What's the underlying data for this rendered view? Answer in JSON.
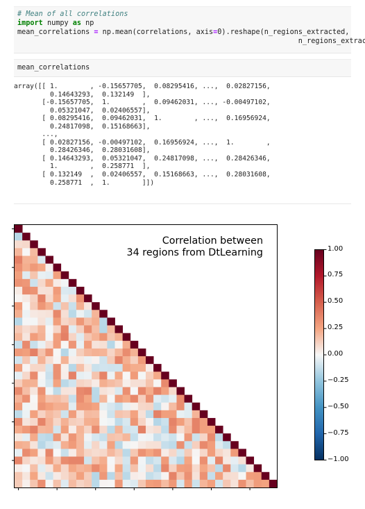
{
  "cell1": {
    "comment": "# Mean of all correlations",
    "import_kw": "import",
    "import_mod": " numpy ",
    "as_kw": "as",
    "import_alias": " np",
    "line3a": "mean_correlations ",
    "eq": "=",
    "line3b": " np.mean(correlations, axis",
    "eq2": "=",
    "line3c": "0).reshape(n_regions_extracted,",
    "line4": "                                                                  n_regions_extracted)"
  },
  "cell2": {
    "code": "mean_correlations"
  },
  "output": {
    "lines": [
      "array([[ 1.        , -0.15657705,  0.08295416, ...,  0.02827156,",
      "         0.14643293,  0.132149  ],",
      "       [-0.15657705,  1.        ,  0.09462031, ..., -0.00497102,",
      "         0.05321047,  0.02406557],",
      "       [ 0.08295416,  0.09462031,  1.        , ...,  0.16956924,",
      "         0.24817098,  0.15168663],",
      "       ...,",
      "       [ 0.02827156, -0.00497102,  0.16956924, ...,  1.        ,",
      "         0.28426346,  0.28031608],",
      "       [ 0.14643293,  0.05321047,  0.24817098, ...,  0.28426346,",
      "         1.        ,  0.258771  ],",
      "       [ 0.132149  ,  0.02406557,  0.15168663, ...,  0.28031608,",
      "         0.258771  ,  1.        ]])"
    ]
  },
  "plot": {
    "title_line1": "Correlation between",
    "title_line2": "34 regions from DtLearning",
    "colorbar_ticks": [
      "1.00",
      "0.75",
      "0.50",
      "0.25",
      "0.00",
      "−0.25",
      "−0.50",
      "−0.75",
      "−1.00"
    ],
    "colormap": "RdBu_r",
    "colors": {
      "pos_max": "#67001f",
      "neg_max": "#053061",
      "mid": "#f7f7f7"
    }
  },
  "chart_data": {
    "type": "heatmap",
    "n_regions": 34,
    "triangle": "lower",
    "vmin": -1.0,
    "vmax": 1.0,
    "colorbar_ticks": [
      1.0,
      0.75,
      0.5,
      0.25,
      0.0,
      -0.25,
      -0.5,
      -0.75,
      -1.0
    ],
    "values_shown": [
      [
        1.0,
        -0.15657705,
        0.08295416,
        0.02827156,
        0.14643293,
        0.132149
      ],
      [
        -0.15657705,
        1.0,
        0.09462031,
        -0.00497102,
        0.05321047,
        0.02406557
      ],
      [
        0.08295416,
        0.09462031,
        1.0,
        0.16956924,
        0.24817098,
        0.15168663
      ],
      [
        0.02827156,
        -0.00497102,
        0.16956924,
        1.0,
        0.28426346,
        0.28031608
      ],
      [
        0.14643293,
        0.05321047,
        0.24817098,
        0.28426346,
        1.0,
        0.258771
      ],
      [
        0.132149,
        0.02406557,
        0.15168663,
        0.28031608,
        0.258771,
        1.0
      ]
    ]
  }
}
